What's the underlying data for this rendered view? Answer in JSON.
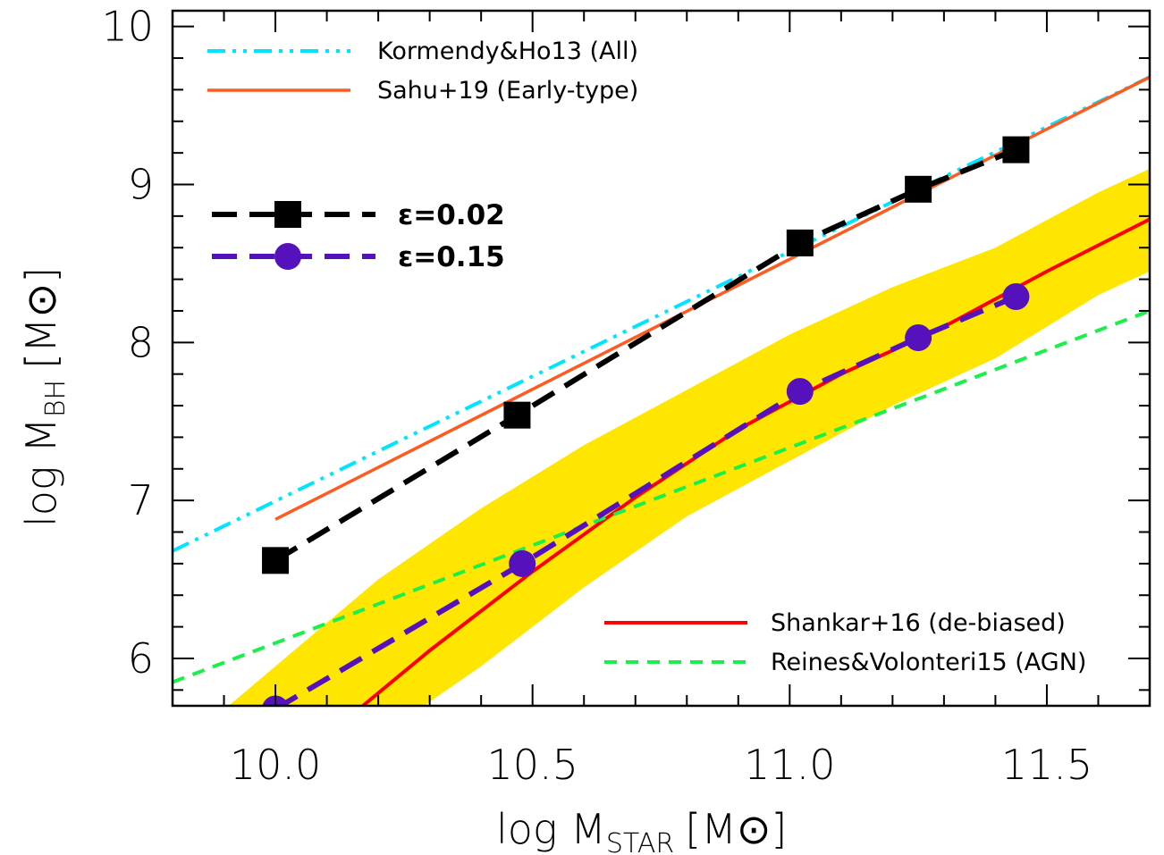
{
  "chart_data": {
    "type": "line",
    "xlabel": {
      "main": "log  M",
      "sub": "STAR",
      "unit": "[M⊙]"
    },
    "ylabel": {
      "main": "log  M",
      "sub": "BH",
      "unit": "[M⊙]"
    },
    "xlim": [
      9.8,
      11.7
    ],
    "ylim": [
      5.7,
      10.1
    ],
    "xticks": [
      10.0,
      10.5,
      11.0,
      11.5
    ],
    "xtick_labels": [
      "10.0",
      "10.5",
      "11.0",
      "11.5"
    ],
    "yticks": [
      6,
      7,
      8,
      9,
      10
    ],
    "ytick_labels": [
      "6",
      "7",
      "8",
      "9",
      "10"
    ],
    "grid": false,
    "band": {
      "color": "#ffe600",
      "x": [
        9.8,
        10.0,
        10.2,
        10.4,
        10.6,
        10.8,
        11.0,
        11.2,
        11.4,
        11.6,
        11.7
      ],
      "upper": [
        5.4,
        5.95,
        6.5,
        6.95,
        7.35,
        7.7,
        8.05,
        8.35,
        8.6,
        8.95,
        9.1
      ],
      "lower": [
        4.6,
        5.1,
        5.5,
        5.95,
        6.45,
        6.9,
        7.25,
        7.6,
        7.9,
        8.3,
        8.45
      ]
    },
    "series": [
      {
        "name": "Kormendy&Ho13 (All)",
        "color": "#00e5ff",
        "dash": "20,8,4,8,4,8",
        "width": 4,
        "x": [
          9.8,
          11.7
        ],
        "y": [
          6.68,
          9.68
        ]
      },
      {
        "name": "Sahu+19 (Early-type)",
        "color": "#ff5a1f",
        "dash": "",
        "width": 3.5,
        "x": [
          10.0,
          11.7
        ],
        "y": [
          6.88,
          9.68
        ]
      },
      {
        "name": "Shankar+16 (de-biased)",
        "color": "#ff0000",
        "dash": "",
        "width": 4,
        "x": [
          10.17,
          10.3,
          10.5,
          10.7,
          10.9,
          11.1,
          11.3,
          11.5,
          11.7
        ],
        "y": [
          5.7,
          6.05,
          6.55,
          7.02,
          7.45,
          7.8,
          8.1,
          8.45,
          8.78
        ]
      },
      {
        "name": "Reines&Volonteri15 (AGN)",
        "color": "#19f04a",
        "dash": "14,10",
        "width": 4,
        "x": [
          9.8,
          11.7
        ],
        "y": [
          5.85,
          8.2
        ]
      },
      {
        "name": "ε=0.02",
        "color": "#000000",
        "dash": "28,14",
        "width": 6,
        "marker": "square",
        "x": [
          10.0,
          10.47,
          11.02,
          11.25,
          11.44
        ],
        "y": [
          6.62,
          7.54,
          8.63,
          8.97,
          9.22
        ]
      },
      {
        "name": "ε=0.15",
        "color": "#5511bb",
        "dash": "28,14",
        "width": 6,
        "marker": "circle",
        "x": [
          10.0,
          10.48,
          11.02,
          11.25,
          11.44
        ],
        "y": [
          5.68,
          6.6,
          7.69,
          8.03,
          8.29
        ]
      }
    ]
  }
}
